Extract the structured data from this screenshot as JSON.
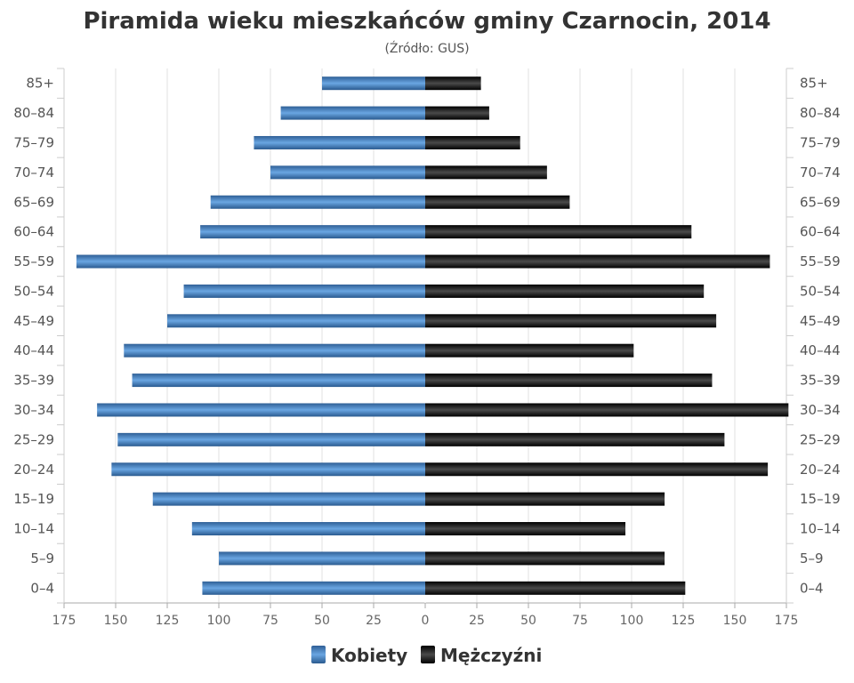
{
  "chart_data": {
    "type": "bar",
    "orientation": "horizontal",
    "title": "Piramida wieku mieszkańców gminy Czarnocin, 2014",
    "subtitle": "(Źródło: GUS)",
    "categories": [
      "85+",
      "80-84",
      "75-79",
      "70-74",
      "65-69",
      "60-64",
      "55-59",
      "50-54",
      "45-49",
      "40-44",
      "35-39",
      "30-34",
      "25-29",
      "20-24",
      "15-19",
      "10-14",
      "5-9",
      "0-4"
    ],
    "series": [
      {
        "name": "Kobiety",
        "side": "left",
        "color": "#3d7bbf",
        "values": [
          50,
          70,
          83,
          75,
          104,
          109,
          169,
          117,
          125,
          146,
          142,
          159,
          149,
          152,
          132,
          113,
          100,
          108
        ]
      },
      {
        "name": "Mężczyźni",
        "side": "right",
        "color": "#111111",
        "values": [
          27,
          31,
          46,
          59,
          70,
          129,
          167,
          135,
          141,
          101,
          139,
          176,
          145,
          166,
          116,
          97,
          116,
          126
        ]
      }
    ],
    "xlim": [
      -175,
      175
    ],
    "xticks": [
      -175,
      -150,
      -125,
      -100,
      -75,
      -50,
      -25,
      0,
      25,
      50,
      75,
      100,
      125,
      150,
      175
    ],
    "xtick_labels": [
      "175",
      "150",
      "125",
      "100",
      "75",
      "50",
      "25",
      "0",
      "25",
      "50",
      "75",
      "100",
      "125",
      "150",
      "175"
    ],
    "grid": true,
    "legend_position": "bottom"
  }
}
